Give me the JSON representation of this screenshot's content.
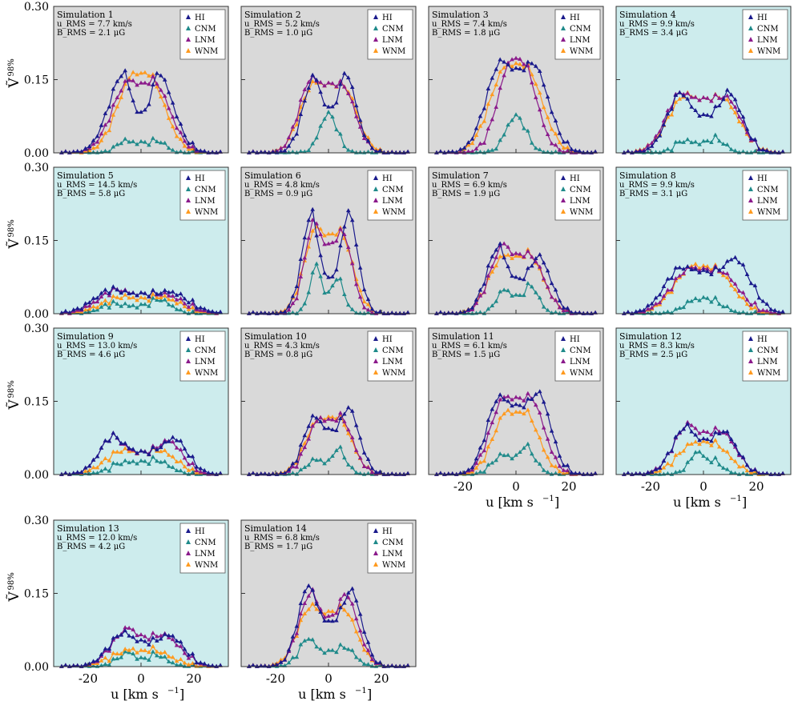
{
  "figure": {
    "ylabel": "Ṽ",
    "ylabel_sup": "98%",
    "xlabel": "u [km s",
    "xlabel_sup": "−1",
    "xlabel_end": "]",
    "yticks": [
      "0.00",
      "0.15",
      "0.30"
    ],
    "xticks": [
      "-20",
      "0",
      "20"
    ]
  },
  "colors": {
    "HI": "#1a1a8c",
    "CNM": "#1f8a8a",
    "LNM": "#8b1a8b",
    "WNM": "#ff9a1f",
    "bg_gray": "#d9d9d9",
    "bg_cyan": "#cdeced"
  },
  "legend": [
    "HI",
    "CNM",
    "LNM",
    "WNM"
  ],
  "chart_data": [
    {
      "type": "line",
      "title": "Simulation 1",
      "u_rms": "7.7",
      "B_rms": "2.1",
      "bg": "gray",
      "xlim": [
        -33,
        33
      ],
      "ylim": [
        0,
        0.3
      ],
      "peaks": {
        "HI": [
          0.165,
          0.165,
          -6,
          6,
          0.08,
          11
        ],
        "CNM": [
          0.025,
          0.025,
          -6,
          6,
          0.02,
          6
        ],
        "LNM": [
          0.15,
          0.15,
          -4,
          4,
          0.14,
          12
        ],
        "WNM": [
          0.165,
          0.165,
          -2,
          2,
          0.16,
          12
        ]
      }
    },
    {
      "type": "line",
      "title": "Simulation 2",
      "u_rms": "5.2",
      "B_rms": "1.0",
      "bg": "gray",
      "xlim": [
        -33,
        33
      ],
      "ylim": [
        0,
        0.3
      ],
      "peaks": {
        "HI": [
          0.16,
          0.165,
          -5,
          6,
          0.09,
          8
        ],
        "CNM": [
          0.08,
          0.08,
          0,
          0,
          0.08,
          6
        ],
        "LNM": [
          0.155,
          0.14,
          -6,
          5,
          0.14,
          9
        ],
        "WNM": [
          0.145,
          0.14,
          -5,
          5,
          0.14,
          10
        ]
      }
    },
    {
      "type": "line",
      "title": "Simulation 3",
      "u_rms": "7.4",
      "B_rms": "1.8",
      "bg": "gray",
      "xlim": [
        -33,
        33
      ],
      "ylim": [
        0,
        0.3
      ],
      "peaks": {
        "HI": [
          0.19,
          0.185,
          -5,
          6,
          0.17,
          11
        ],
        "CNM": [
          0.075,
          0.075,
          0,
          0,
          0.075,
          7
        ],
        "LNM": [
          0.195,
          0.19,
          -1,
          2,
          0.19,
          10
        ],
        "WNM": [
          0.18,
          0.18,
          -3,
          3,
          0.18,
          12
        ]
      }
    },
    {
      "type": "line",
      "title": "Simulation 4",
      "u_rms": "9.9",
      "B_rms": "3.4",
      "bg": "cyan",
      "xlim": [
        -33,
        33
      ],
      "ylim": [
        0,
        0.3
      ],
      "peaks": {
        "HI": [
          0.125,
          0.125,
          -8,
          9,
          0.075,
          10
        ],
        "CNM": [
          0.025,
          0.03,
          -7,
          4,
          0.02,
          7
        ],
        "LNM": [
          0.125,
          0.115,
          -8,
          8,
          0.11,
          11
        ],
        "WNM": [
          0.12,
          0.115,
          -6,
          6,
          0.11,
          13
        ]
      }
    },
    {
      "type": "line",
      "title": "Simulation 5",
      "u_rms": "14.5",
      "B_rms": "5.8",
      "bg": "cyan",
      "xlim": [
        -33,
        33
      ],
      "ylim": [
        0,
        0.3
      ],
      "peaks": {
        "HI": [
          0.05,
          0.045,
          -10,
          10,
          0.04,
          14
        ],
        "CNM": [
          0.02,
          0.03,
          -10,
          6,
          0.015,
          9
        ],
        "LNM": [
          0.05,
          0.04,
          -8,
          8,
          0.04,
          14
        ],
        "WNM": [
          0.035,
          0.035,
          -6,
          6,
          0.03,
          15
        ]
      }
    },
    {
      "type": "line",
      "title": "Simulation 6",
      "u_rms": "4.8",
      "B_rms": "0.9",
      "bg": "gray",
      "xlim": [
        -33,
        33
      ],
      "ylim": [
        0,
        0.3
      ],
      "peaks": {
        "HI": [
          0.21,
          0.215,
          -6,
          7,
          0.07,
          7
        ],
        "CNM": [
          0.105,
          0.075,
          -4,
          3,
          0.04,
          5
        ],
        "LNM": [
          0.195,
          0.17,
          -5,
          5,
          0.14,
          7
        ],
        "WNM": [
          0.18,
          0.17,
          -4,
          4,
          0.16,
          9
        ]
      }
    },
    {
      "type": "line",
      "title": "Simulation 7",
      "u_rms": "6.9",
      "B_rms": "1.9",
      "bg": "gray",
      "xlim": [
        -33,
        33
      ],
      "ylim": [
        0,
        0.3
      ],
      "peaks": {
        "HI": [
          0.14,
          0.12,
          -6,
          8,
          0.07,
          9
        ],
        "CNM": [
          0.05,
          0.06,
          -4,
          5,
          0.035,
          6
        ],
        "LNM": [
          0.145,
          0.12,
          -4,
          5,
          0.12,
          10
        ],
        "WNM": [
          0.12,
          0.125,
          -4,
          4,
          0.115,
          11
        ]
      }
    },
    {
      "type": "line",
      "title": "Simulation 8",
      "u_rms": "9.9",
      "B_rms": "3.1",
      "bg": "cyan",
      "xlim": [
        -33,
        33
      ],
      "ylim": [
        0,
        0.3
      ],
      "peaks": {
        "HI": [
          0.095,
          0.115,
          -8,
          11,
          0.085,
          12
        ],
        "CNM": [
          0.03,
          0.03,
          -2,
          2,
          0.03,
          9
        ],
        "LNM": [
          0.095,
          0.09,
          -4,
          5,
          0.09,
          14
        ],
        "WNM": [
          0.1,
          0.095,
          -3,
          3,
          0.095,
          14
        ]
      }
    },
    {
      "type": "line",
      "title": "Simulation 9",
      "u_rms": "13.0",
      "B_rms": "4.6",
      "bg": "cyan",
      "xlim": [
        -33,
        33
      ],
      "ylim": [
        0,
        0.3
      ],
      "peaks": {
        "HI": [
          0.08,
          0.075,
          -10,
          12,
          0.045,
          10
        ],
        "CNM": [
          0.025,
          0.03,
          -6,
          5,
          0.025,
          10
        ],
        "LNM": [
          0.08,
          0.07,
          -10,
          10,
          0.045,
          10
        ],
        "WNM": [
          0.05,
          0.05,
          -6,
          6,
          0.045,
          13
        ]
      }
    },
    {
      "type": "line",
      "title": "Simulation 10",
      "u_rms": "4.3",
      "B_rms": "0.8",
      "bg": "gray",
      "xlim": [
        -33,
        33
      ],
      "ylim": [
        0,
        0.3
      ],
      "peaks": {
        "HI": [
          0.12,
          0.14,
          -5,
          7,
          0.09,
          8
        ],
        "CNM": [
          0.03,
          0.055,
          -5,
          3,
          0.025,
          6
        ],
        "LNM": [
          0.115,
          0.12,
          -3,
          4,
          0.11,
          9
        ],
        "WNM": [
          0.115,
          0.12,
          -3,
          3,
          0.115,
          10
        ]
      }
    },
    {
      "type": "line",
      "title": "Simulation 11",
      "u_rms": "6.1",
      "B_rms": "1.5",
      "bg": "gray",
      "xlim": [
        -33,
        33
      ],
      "ylim": [
        0,
        0.3
      ],
      "peaks": {
        "HI": [
          0.16,
          0.17,
          -6,
          8,
          0.14,
          9
        ],
        "CNM": [
          0.04,
          0.06,
          -5,
          3,
          0.035,
          7
        ],
        "LNM": [
          0.16,
          0.16,
          -4,
          5,
          0.155,
          10
        ],
        "WNM": [
          0.13,
          0.13,
          -3,
          3,
          0.125,
          10
        ]
      }
    },
    {
      "type": "line",
      "title": "Simulation 12",
      "u_rms": "8.3",
      "B_rms": "2.5",
      "bg": "cyan",
      "xlim": [
        -33,
        33
      ],
      "ylim": [
        0,
        0.3
      ],
      "peaks": {
        "HI": [
          0.1,
          0.09,
          -6,
          7,
          0.07,
          10
        ],
        "CNM": [
          0.05,
          0.03,
          -1,
          3,
          0.03,
          7
        ],
        "LNM": [
          0.105,
          0.09,
          -5,
          6,
          0.085,
          11
        ],
        "WNM": [
          0.065,
          0.065,
          -3,
          3,
          0.065,
          12
        ]
      }
    },
    {
      "type": "line",
      "title": "Simulation 13",
      "u_rms": "12.0",
      "B_rms": "4.2",
      "bg": "cyan",
      "xlim": [
        -33,
        33
      ],
      "ylim": [
        0,
        0.3
      ],
      "peaks": {
        "HI": [
          0.07,
          0.065,
          -6,
          10,
          0.05,
          11
        ],
        "CNM": [
          0.03,
          0.025,
          -4,
          5,
          0.015,
          8
        ],
        "LNM": [
          0.08,
          0.065,
          -4,
          8,
          0.06,
          12
        ],
        "WNM": [
          0.035,
          0.035,
          -3,
          3,
          0.03,
          14
        ]
      }
    },
    {
      "type": "line",
      "title": "Simulation 14",
      "u_rms": "6.8",
      "B_rms": "1.7",
      "bg": "gray",
      "xlim": [
        -33,
        33
      ],
      "ylim": [
        0,
        0.3
      ],
      "peaks": {
        "HI": [
          0.17,
          0.16,
          -7,
          8,
          0.09,
          8
        ],
        "CNM": [
          0.06,
          0.04,
          -7,
          6,
          0.03,
          7
        ],
        "LNM": [
          0.155,
          0.15,
          -6,
          6,
          0.1,
          9
        ],
        "WNM": [
          0.125,
          0.12,
          -6,
          5,
          0.11,
          10
        ]
      }
    }
  ]
}
